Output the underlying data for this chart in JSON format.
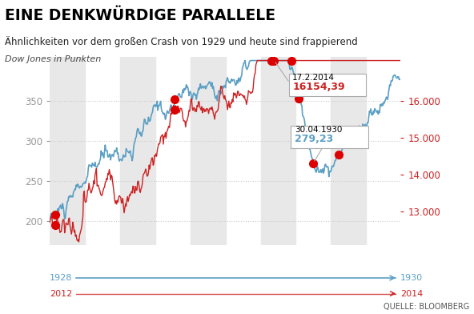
{
  "title": "EINE DENKWÜRDIGE PARALLELE",
  "subtitle": "Ähnlichkeiten vor dem großen Crash von 1929 und heute sind frappierend",
  "axis_label": "Dow Jones in Punkten",
  "source": "QUELLE: BLOOMBERG",
  "legend_blue_start": "1928",
  "legend_blue_end": "1930",
  "legend_red_start": "2012",
  "legend_red_end": "2014",
  "annotation1_date": "17.2.2014",
  "annotation1_value": "16154,39",
  "annotation2_date": "30.04.1930",
  "annotation2_value": "279,23",
  "left_yticks": [
    200,
    250,
    300,
    350
  ],
  "right_yticks": [
    13000,
    14000,
    15000,
    16000
  ],
  "ylim_left": [
    170,
    405
  ],
  "ylim_right": [
    12100,
    17200
  ],
  "background_color": "#ffffff",
  "stripe_color": "#e8e8e8",
  "blue_color": "#5b9fc4",
  "red_color": "#cc2222",
  "dot_color": "#dd0000",
  "grid_color": "#cccccc",
  "title_color": "#000000",
  "subtitle_color": "#222222",
  "axis_label_color": "#444444"
}
